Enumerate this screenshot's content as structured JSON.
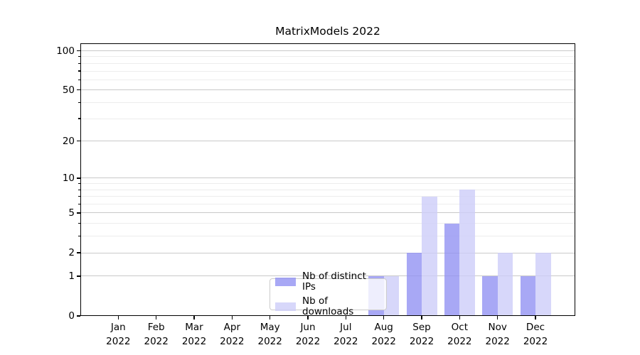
{
  "chart_data": {
    "type": "bar",
    "title": "MatrixModels 2022",
    "categories": [
      "Jan",
      "Feb",
      "Mar",
      "Apr",
      "May",
      "Jun",
      "Jul",
      "Aug",
      "Sep",
      "Oct",
      "Nov",
      "Dec"
    ],
    "year": "2022",
    "series": [
      {
        "name": "Nb of distinct IPs",
        "color": "#9292F3",
        "values": [
          0,
          0,
          0,
          0,
          0,
          0,
          0,
          1,
          2,
          4,
          1,
          1
        ]
      },
      {
        "name": "Nb of downloads",
        "color": "#CDCDF9",
        "values": [
          0,
          0,
          0,
          0,
          0,
          0,
          0,
          1,
          7,
          8,
          2,
          2
        ]
      }
    ],
    "bar_alpha": 0.8,
    "yscale": "log1p",
    "ylim": [
      0,
      114
    ],
    "y_major_ticks": [
      0,
      1,
      2,
      5,
      10,
      20,
      50,
      100
    ],
    "y_minor_gridlines": [
      3,
      4,
      6,
      7,
      8,
      9,
      30,
      40,
      60,
      70,
      80,
      90
    ],
    "grid": "horizontal",
    "legend_position": "lower center, inside axes",
    "colors": {
      "major_grid": "#c9c9c9",
      "minor_grid": "#ededed",
      "spine": "#000000",
      "legend_border": "#cccccc"
    }
  }
}
